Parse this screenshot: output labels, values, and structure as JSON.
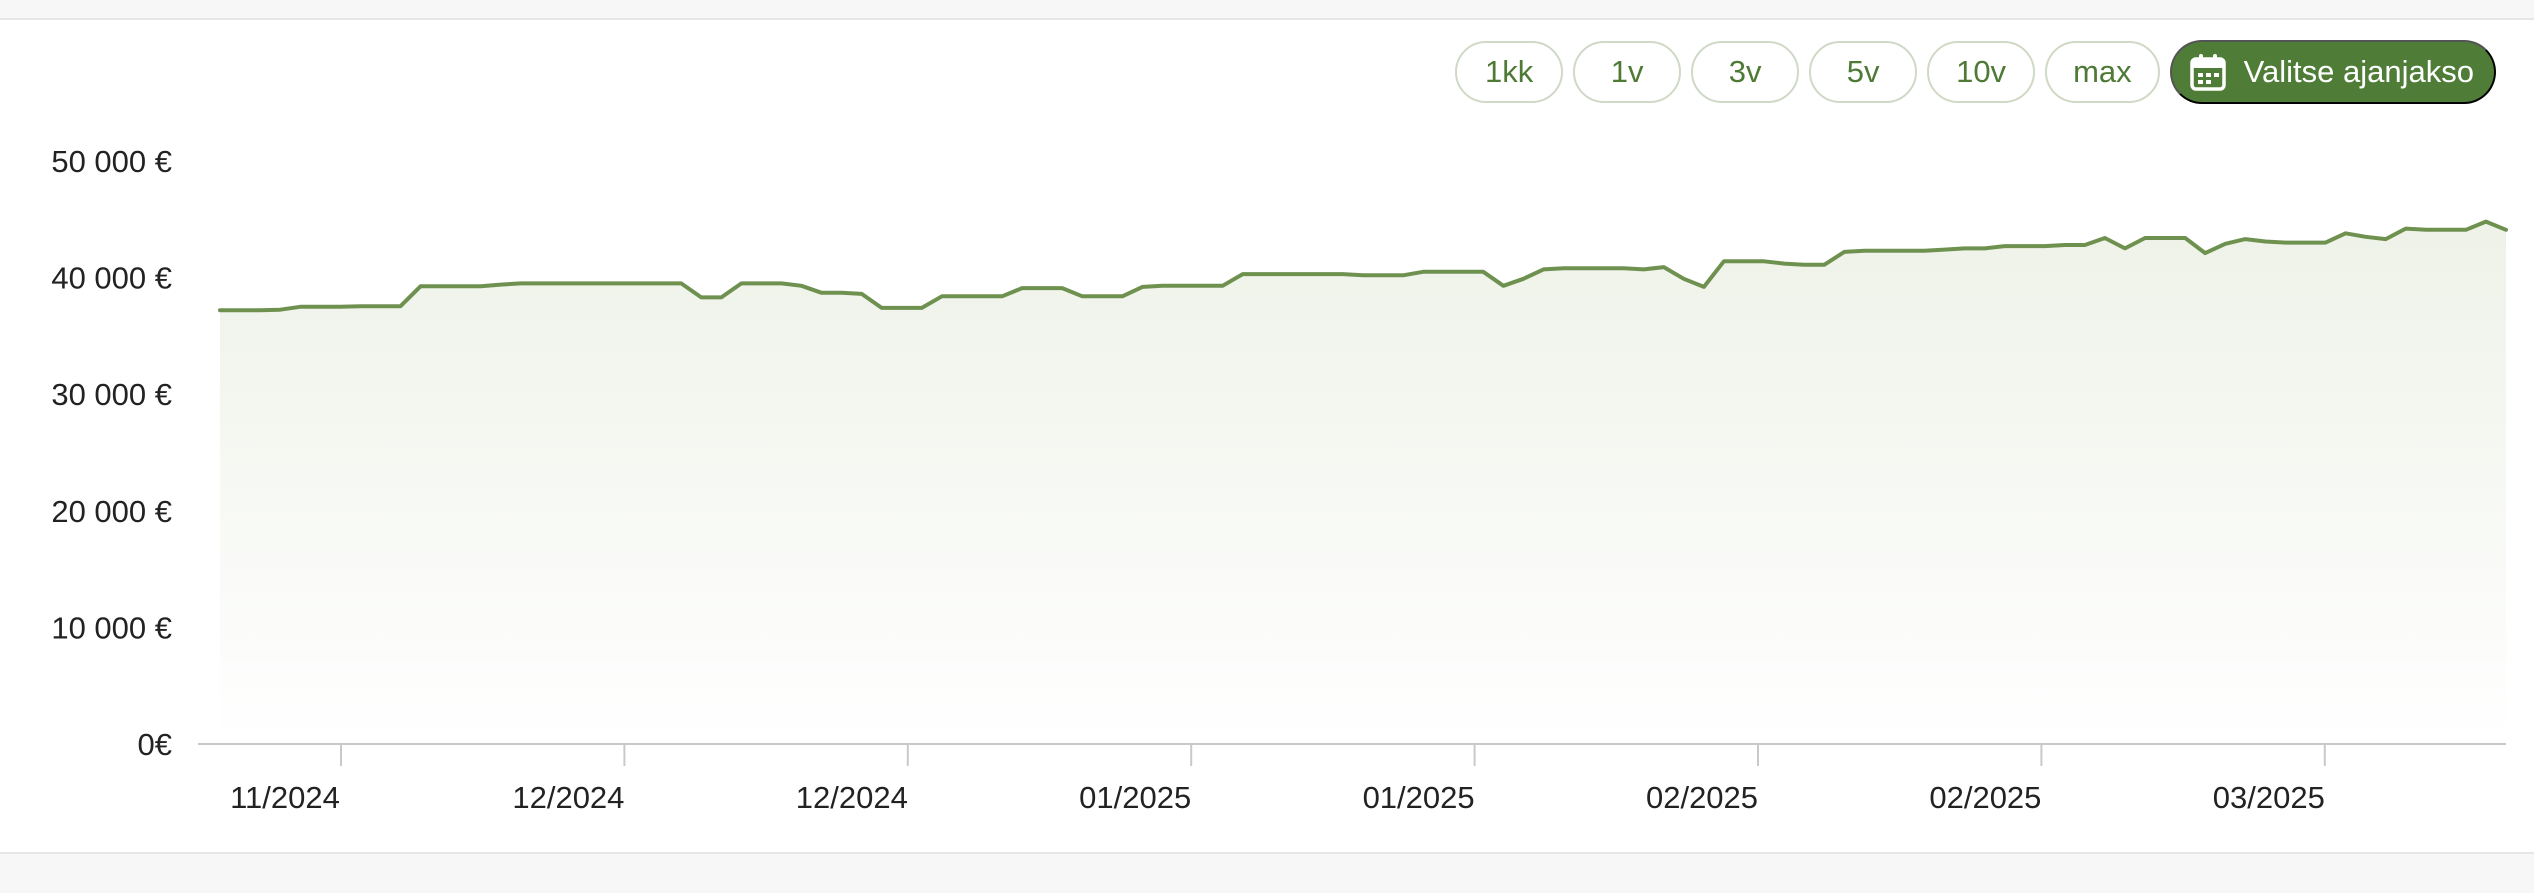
{
  "controls": {
    "ranges": [
      "1kk",
      "1v",
      "3v",
      "5v",
      "10v",
      "max"
    ],
    "period_label": "Valitse ajanjakso",
    "period_icon": "calendar-icon"
  },
  "colors": {
    "line": "#6f9150",
    "accent": "#4f7d37",
    "axis": "#c9c9c9"
  },
  "chart_data": {
    "type": "area",
    "title": "",
    "xlabel": "",
    "ylabel": "",
    "ylim": [
      0,
      50000
    ],
    "yticks": [
      0,
      10000,
      20000,
      30000,
      40000,
      50000
    ],
    "ytick_labels": [
      "0€",
      "10 000 €",
      "20 000 €",
      "30 000 €",
      "40 000 €",
      "50 000 €"
    ],
    "xtick_labels": [
      "11/2024",
      "12/2024",
      "12/2024",
      "01/2025",
      "01/2025",
      "02/2025",
      "02/2025",
      "03/2025"
    ],
    "grid": false,
    "series": [
      {
        "values": [
          37200,
          37200,
          37200,
          37250,
          37500,
          37500,
          37500,
          37550,
          37550,
          37550,
          39250,
          39250,
          39250,
          39250,
          39400,
          39500,
          39500,
          39500,
          39500,
          39500,
          39500,
          39500,
          39500,
          39500,
          38300,
          38300,
          39500,
          39500,
          39500,
          39300,
          38700,
          38700,
          38600,
          37400,
          37400,
          37400,
          38400,
          38400,
          38400,
          38400,
          39100,
          39100,
          39100,
          38400,
          38400,
          38400,
          39200,
          39300,
          39300,
          39300,
          39300,
          40300,
          40300,
          40300,
          40300,
          40300,
          40300,
          40200,
          40200,
          40200,
          40500,
          40500,
          40500,
          40500,
          39300,
          39900,
          40700,
          40800,
          40800,
          40800,
          40800,
          40700,
          40900,
          39900,
          39200,
          41400,
          41400,
          41400,
          41200,
          41100,
          41100,
          42200,
          42300,
          42300,
          42300,
          42300,
          42400,
          42500,
          42500,
          42700,
          42700,
          42700,
          42800,
          42800,
          43400,
          42500,
          43400,
          43400,
          43400,
          42100,
          42900,
          43300,
          43100,
          43000,
          43000,
          43000,
          43800,
          43500,
          43300,
          44200,
          44100,
          44100,
          44100,
          44800,
          44100
        ]
      }
    ]
  }
}
